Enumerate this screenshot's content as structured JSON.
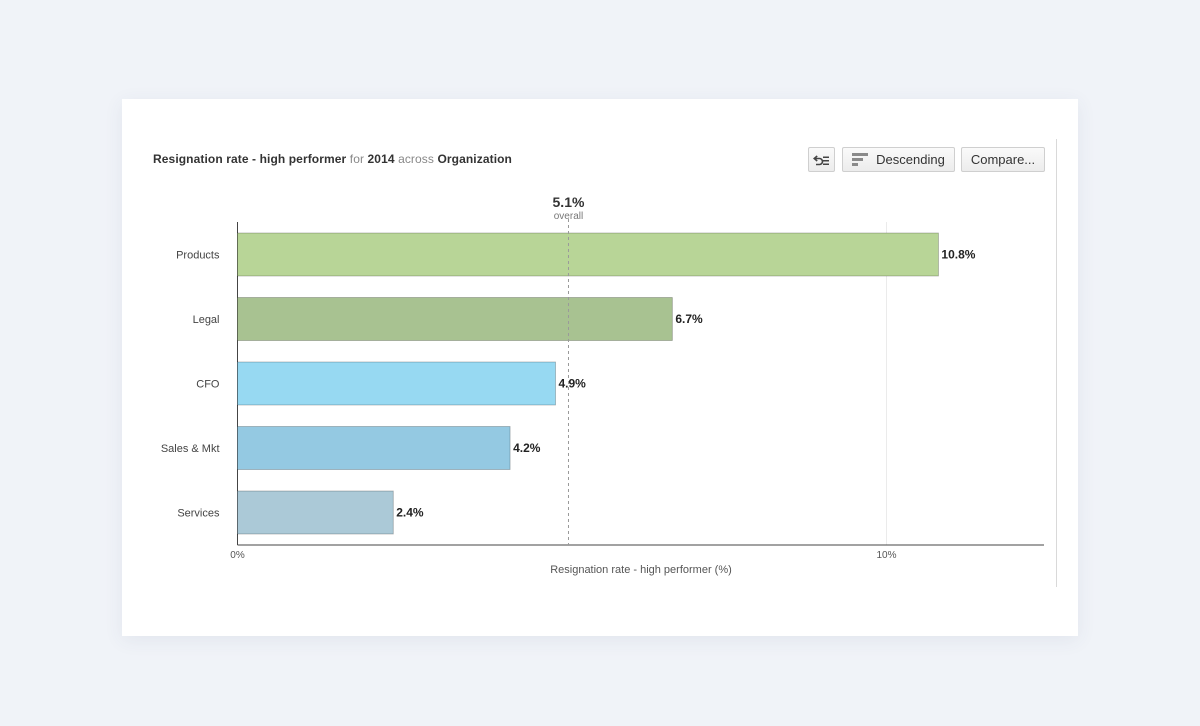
{
  "header": {
    "metric": "Resignation rate - high performer",
    "for_word": "for",
    "year": "2014",
    "across_word": "across",
    "scope": "Organization"
  },
  "toolbar": {
    "reset_icon": "reset-sort-icon",
    "sort_icon": "sort-bars-icon",
    "sort_label": "Descending",
    "compare_label": "Compare..."
  },
  "chart_data": {
    "type": "bar",
    "orientation": "horizontal",
    "title": "Resignation rate - high performer for 2014 across Organization",
    "xlabel": "Resignation rate - high performer (%)",
    "ylabel": "",
    "xlim": [
      0,
      12.4
    ],
    "ticks": [
      {
        "value": 0,
        "label": "0%"
      },
      {
        "value": 10,
        "label": "10%"
      }
    ],
    "categories": [
      "Products",
      "Legal",
      "CFO",
      "Sales & Mkt",
      "Services"
    ],
    "values": [
      10.8,
      6.7,
      4.9,
      4.2,
      2.4
    ],
    "value_labels": [
      "10.8%",
      "6.7%",
      "4.9%",
      "4.2%",
      "2.4%"
    ],
    "colors": [
      "#b8d597",
      "#a8c291",
      "#97d9f2",
      "#94c9e2",
      "#abc9d7"
    ],
    "reference_line": {
      "value": 5.1,
      "label": "5.1%",
      "sublabel": "overall"
    },
    "sort": "descending",
    "grid": false
  }
}
